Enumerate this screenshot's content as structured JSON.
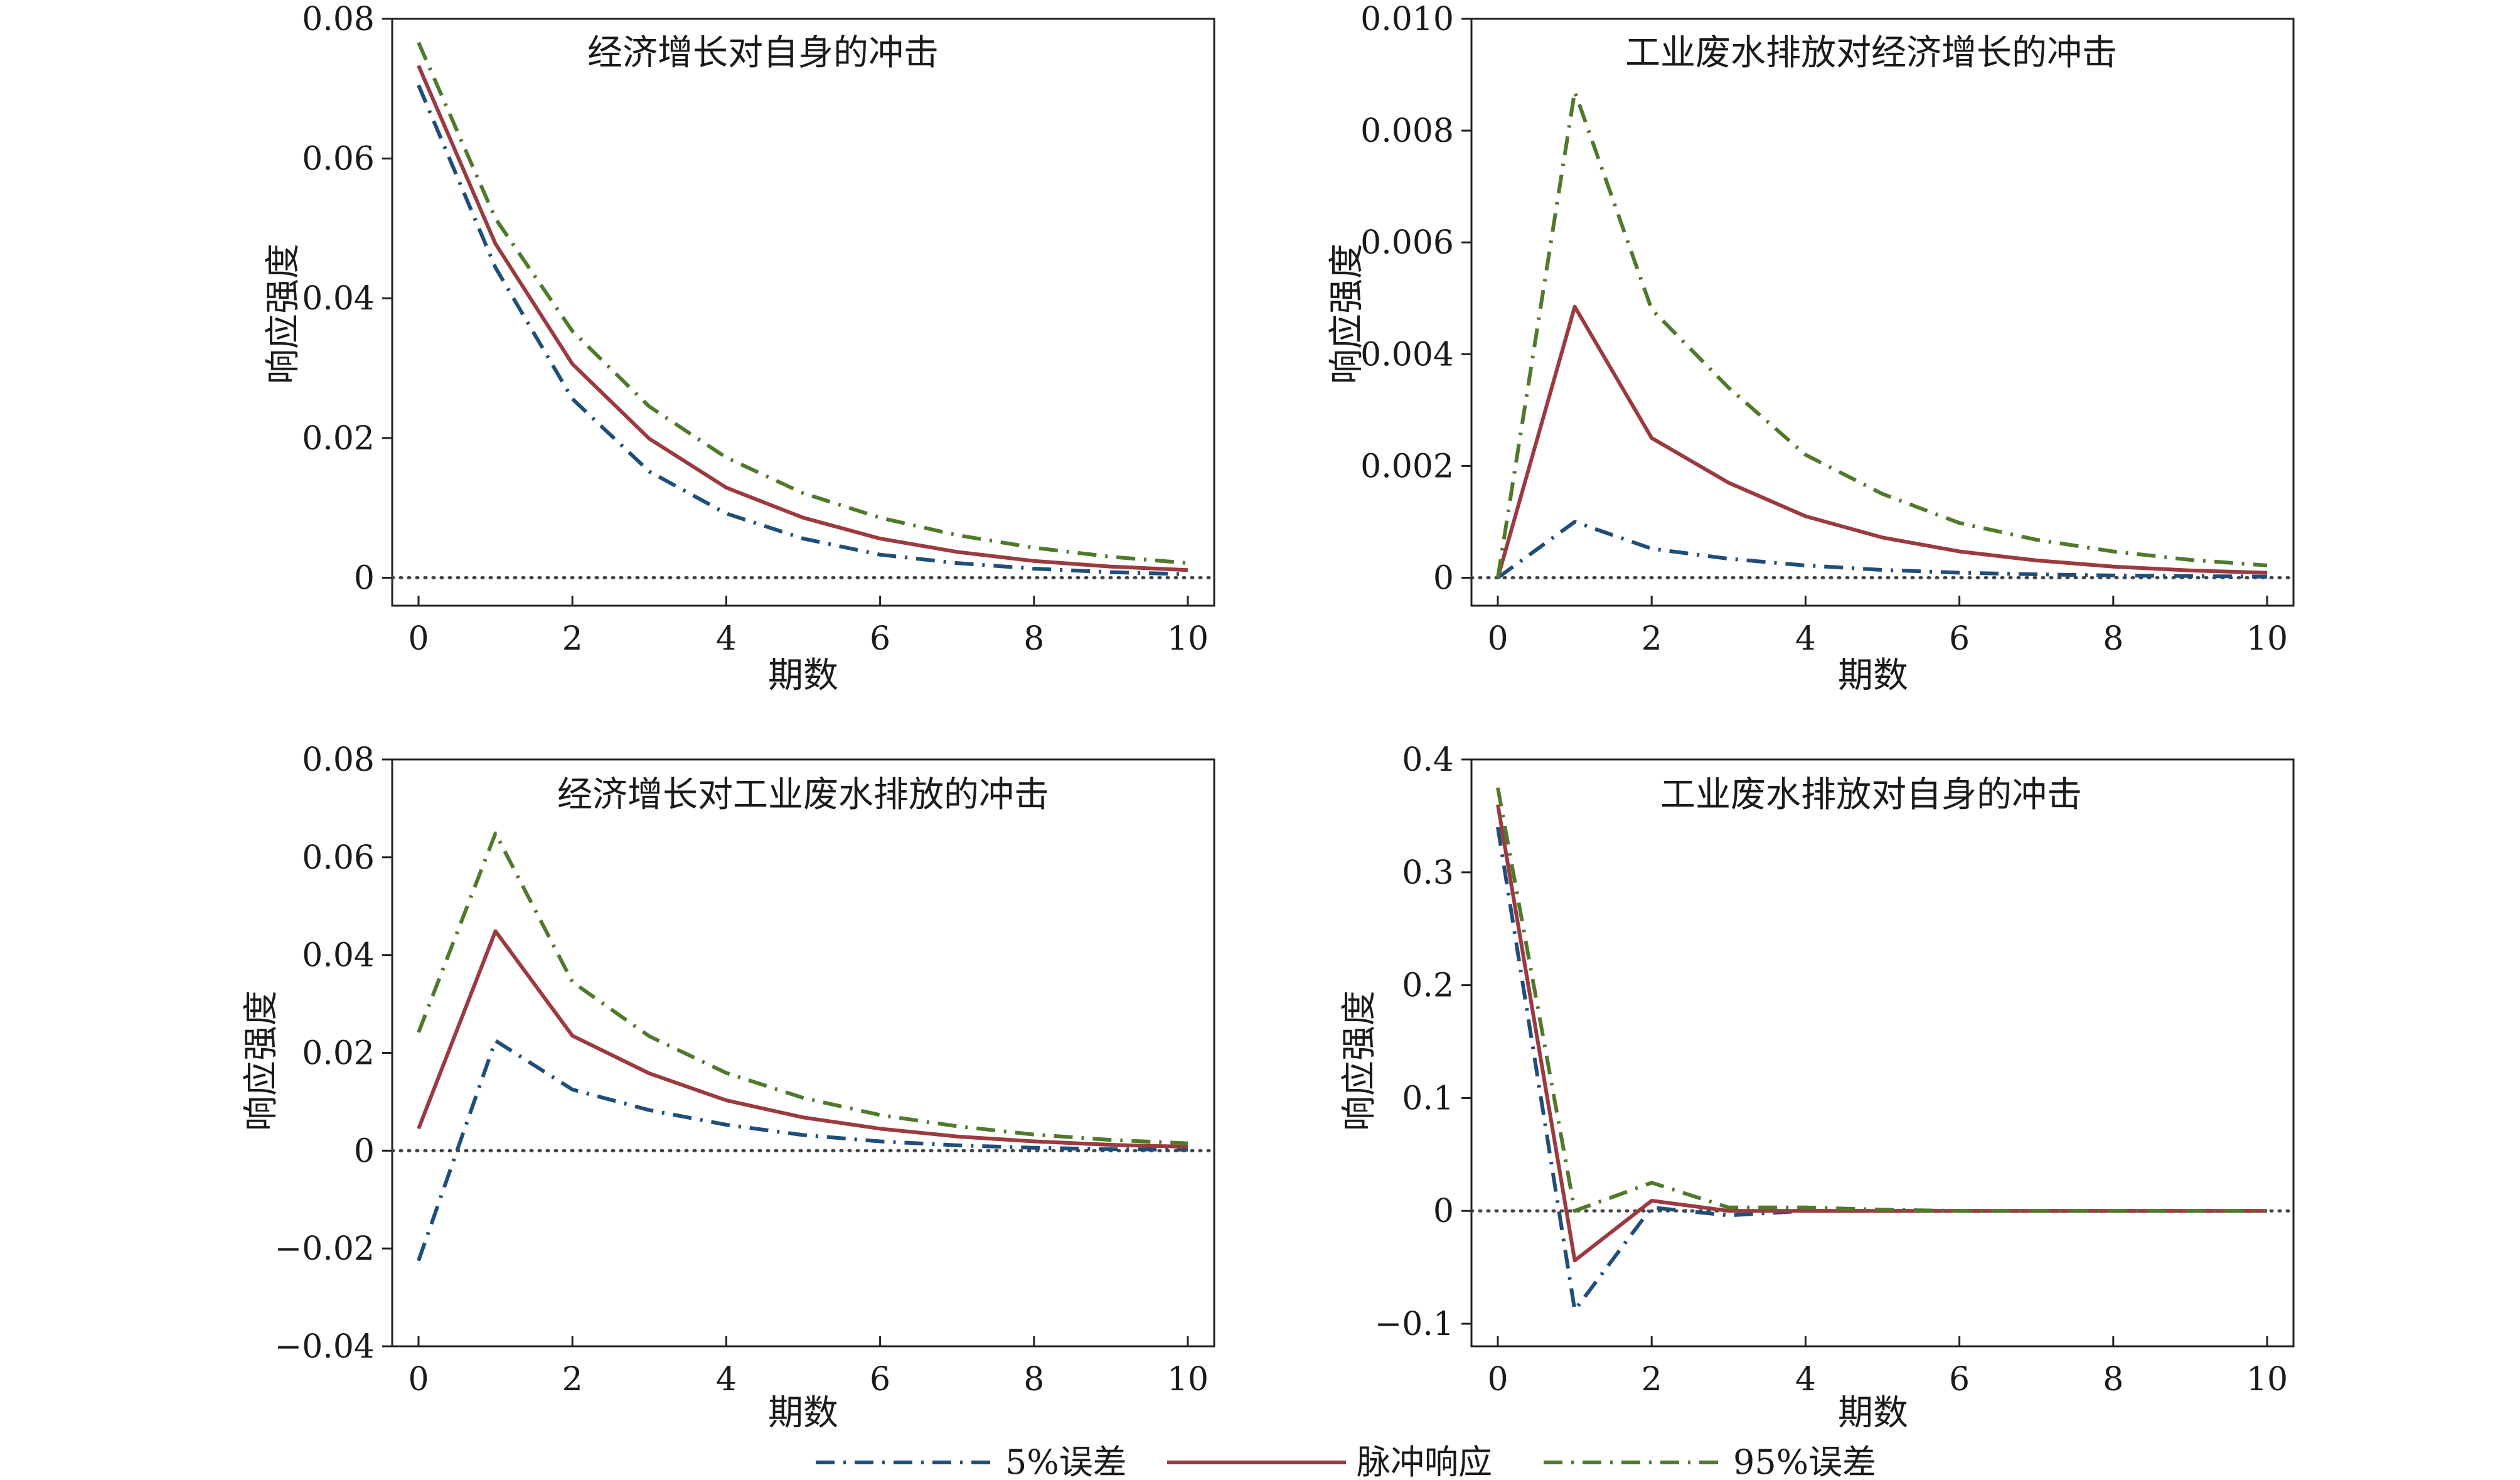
{
  "legend": [
    {
      "label": "5%误差",
      "color": "#1f4e79",
      "style": "dashdot"
    },
    {
      "label": "脉冲响应",
      "color": "#9b3a3f",
      "style": "solid"
    },
    {
      "label": "95%误差",
      "color": "#4f7a2c",
      "style": "dashdot"
    }
  ],
  "chart_data": [
    {
      "type": "line",
      "title": "经济增长对自身的冲击",
      "xlabel": "期数",
      "ylabel": "响应强度",
      "xlim": [
        0,
        10
      ],
      "ylim": [
        -0.004,
        0.08
      ],
      "xticks": [
        0,
        2,
        4,
        6,
        8,
        10
      ],
      "xtick_labels": [
        "0",
        "2",
        "4",
        "6",
        "8",
        "10"
      ],
      "yticks": [
        0,
        0.02,
        0.04,
        0.06,
        0.08
      ],
      "ytick_labels": [
        "0",
        "0.02",
        "0.04",
        "0.06",
        "0.08"
      ],
      "zero_line": true,
      "x": [
        0,
        1,
        2,
        3,
        4,
        5,
        6,
        7,
        8,
        9,
        10
      ],
      "series": [
        {
          "name": "5%误差",
          "values": [
            0.0705,
            0.0444,
            0.0256,
            0.0152,
            0.0092,
            0.0056,
            0.0033,
            0.0021,
            0.0013,
            0.0008,
            0.0005
          ]
        },
        {
          "name": "脉冲响应",
          "values": [
            0.0733,
            0.0478,
            0.0306,
            0.0199,
            0.0129,
            0.0086,
            0.0056,
            0.0037,
            0.0024,
            0.0016,
            0.0011
          ]
        },
        {
          "name": "95%误差",
          "values": [
            0.0766,
            0.0514,
            0.0353,
            0.0245,
            0.0172,
            0.0121,
            0.0086,
            0.0061,
            0.0043,
            0.003,
            0.0021
          ]
        }
      ]
    },
    {
      "type": "line",
      "title": "工业废水排放对经济增长的冲击",
      "xlabel": "期数",
      "ylabel": "响应强度",
      "xlim": [
        0,
        10
      ],
      "ylim": [
        -0.0005,
        0.01
      ],
      "xticks": [
        0,
        2,
        4,
        6,
        8,
        10
      ],
      "xtick_labels": [
        "0",
        "2",
        "4",
        "6",
        "8",
        "10"
      ],
      "yticks": [
        0,
        0.002,
        0.004,
        0.006,
        0.008,
        0.01
      ],
      "ytick_labels": [
        "0",
        "0.002",
        "0.004",
        "0.006",
        "0.008",
        "0.010"
      ],
      "zero_line": true,
      "x": [
        0,
        1,
        2,
        3,
        4,
        5,
        6,
        7,
        8,
        9,
        10
      ],
      "series": [
        {
          "name": "5%误差",
          "values": [
            0.0,
            0.001,
            0.00052,
            0.00034,
            0.00022,
            0.00014,
            9e-05,
            6e-05,
            4e-05,
            3e-05,
            2e-05
          ]
        },
        {
          "name": "脉冲响应",
          "values": [
            0.0,
            0.00485,
            0.0025,
            0.0017,
            0.0011,
            0.00072,
            0.00047,
            0.00031,
            0.0002,
            0.00013,
            9e-05
          ]
        },
        {
          "name": "95%误差",
          "values": [
            0.0,
            0.0087,
            0.0048,
            0.0034,
            0.0022,
            0.0015,
            0.00098,
            0.00068,
            0.00047,
            0.00032,
            0.00022
          ]
        }
      ]
    },
    {
      "type": "line",
      "title": "经济增长对工业废水排放的冲击",
      "xlabel": "期数",
      "ylabel": "响应强度",
      "xlim": [
        0,
        10
      ],
      "ylim": [
        -0.04,
        0.08
      ],
      "xticks": [
        0,
        2,
        4,
        6,
        8,
        10
      ],
      "xtick_labels": [
        "0",
        "2",
        "4",
        "6",
        "8",
        "10"
      ],
      "yticks": [
        -0.04,
        -0.02,
        0,
        0.02,
        0.04,
        0.06,
        0.08
      ],
      "ytick_labels": [
        "−0.04",
        "−0.02",
        "0",
        "0.02",
        "0.04",
        "0.06",
        "0.08"
      ],
      "zero_line": true,
      "x": [
        0,
        1,
        2,
        3,
        4,
        5,
        6,
        7,
        8,
        9,
        10
      ],
      "series": [
        {
          "name": "5%误差",
          "values": [
            -0.0225,
            0.0225,
            0.0125,
            0.0083,
            0.0053,
            0.0032,
            0.0019,
            0.0011,
            0.0006,
            0.0003,
            0.0002
          ]
        },
        {
          "name": "脉冲响应",
          "values": [
            0.0045,
            0.0449,
            0.0235,
            0.0158,
            0.0103,
            0.0068,
            0.0045,
            0.0029,
            0.0019,
            0.0012,
            0.0008
          ]
        },
        {
          "name": "95%误差",
          "values": [
            0.0242,
            0.0649,
            0.0345,
            0.0234,
            0.0159,
            0.0108,
            0.0073,
            0.005,
            0.0033,
            0.0022,
            0.0015
          ]
        }
      ]
    },
    {
      "type": "line",
      "title": "工业废水排放对自身的冲击",
      "xlabel": "期数",
      "ylabel": "响应强度",
      "xlim": [
        0,
        10
      ],
      "ylim": [
        -0.12,
        0.4
      ],
      "xticks": [
        0,
        2,
        4,
        6,
        8,
        10
      ],
      "xtick_labels": [
        "0",
        "2",
        "4",
        "6",
        "8",
        "10"
      ],
      "yticks": [
        -0.1,
        0,
        0.1,
        0.2,
        0.3,
        0.4
      ],
      "ytick_labels": [
        "−0.1",
        "0",
        "0.1",
        "0.2",
        "0.3",
        "0.4"
      ],
      "zero_line": true,
      "x": [
        0,
        1,
        2,
        3,
        4,
        5,
        6,
        7,
        8,
        9,
        10
      ],
      "series": [
        {
          "name": "5%误差",
          "values": [
            0.34,
            -0.088,
            0.003,
            -0.004,
            0.0,
            0.0,
            0.0,
            0.0,
            0.0,
            0.0,
            0.0
          ]
        },
        {
          "name": "脉冲响应",
          "values": [
            0.36,
            -0.044,
            0.009,
            0.0,
            0.0,
            0.0,
            0.0,
            0.0,
            0.0,
            0.0,
            0.0
          ]
        },
        {
          "name": "95%误差",
          "values": [
            0.375,
            0.0,
            0.025,
            0.003,
            0.003,
            0.001,
            0.0,
            0.0,
            0.0,
            0.0,
            0.0
          ]
        }
      ]
    }
  ]
}
